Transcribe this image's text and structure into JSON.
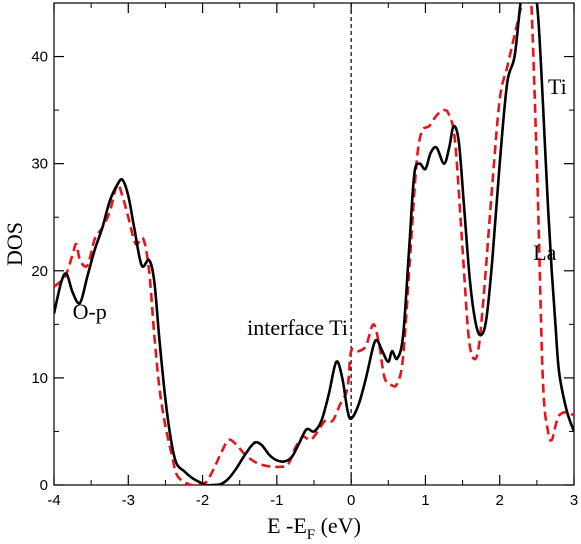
{
  "chart_data": {
    "type": "line",
    "xlabel": "E -E",
    "xlabel_sub": "F",
    "xlabel_unit": " (eV)",
    "ylabel": "DOS",
    "xlim": [
      -4,
      3
    ],
    "ylim": [
      0,
      45
    ],
    "xticks": [
      -4,
      -3,
      -2,
      -1,
      0,
      1,
      2,
      3
    ],
    "yticks": [
      0,
      10,
      20,
      30,
      40
    ],
    "fermi_level": 0,
    "grid": false,
    "annotations": [
      {
        "text": "O-p",
        "x": -3.75,
        "y": 15.5
      },
      {
        "text": "interface Ti",
        "x": -1.4,
        "y": 14.0
      },
      {
        "text": "Ti",
        "x": 2.65,
        "y": 36.5
      },
      {
        "text": "La",
        "x": 2.45,
        "y": 21.0
      }
    ],
    "series": [
      {
        "color": "#000000",
        "dash": "solid",
        "x": [
          -4.0,
          -3.9,
          -3.83,
          -3.75,
          -3.65,
          -3.55,
          -3.45,
          -3.35,
          -3.25,
          -3.15,
          -3.08,
          -3.0,
          -2.92,
          -2.82,
          -2.72,
          -2.65,
          -2.58,
          -2.5,
          -2.42,
          -2.35,
          -2.25,
          -2.15,
          -2.05,
          -1.95,
          -1.85,
          -1.75,
          -1.65,
          -1.55,
          -1.45,
          -1.35,
          -1.28,
          -1.2,
          -1.1,
          -1.0,
          -0.9,
          -0.8,
          -0.7,
          -0.6,
          -0.5,
          -0.4,
          -0.3,
          -0.2,
          -0.12,
          -0.05,
          0.0,
          0.1,
          0.2,
          0.3,
          0.35,
          0.42,
          0.5,
          0.55,
          0.62,
          0.7,
          0.78,
          0.85,
          0.92,
          1.0,
          1.07,
          1.15,
          1.25,
          1.32,
          1.38,
          1.45,
          1.52,
          1.6,
          1.68,
          1.75,
          1.82,
          1.9,
          2.0,
          2.1,
          2.2,
          2.28,
          2.35,
          2.42,
          2.5,
          2.55,
          2.6,
          2.65,
          2.7,
          2.75,
          2.8,
          2.9,
          3.0
        ],
        "y": [
          16.0,
          19.0,
          19.7,
          18.0,
          17.0,
          19.5,
          22.0,
          24.0,
          26.5,
          28.0,
          28.5,
          27.0,
          24.0,
          20.5,
          21.0,
          19.0,
          13.5,
          8.0,
          4.0,
          2.0,
          1.3,
          0.7,
          0.3,
          0.0,
          0.0,
          0.1,
          0.6,
          1.5,
          2.6,
          3.6,
          4.0,
          3.7,
          2.8,
          2.3,
          2.2,
          2.6,
          3.9,
          5.2,
          5.0,
          6.0,
          8.5,
          11.5,
          10.0,
          7.0,
          6.2,
          7.5,
          10.0,
          13.0,
          13.5,
          12.5,
          11.5,
          12.5,
          11.8,
          14.0,
          22.0,
          29.0,
          30.0,
          29.5,
          31.0,
          31.5,
          30.0,
          31.5,
          33.5,
          32.0,
          26.0,
          19.0,
          15.0,
          14.0,
          15.5,
          21.0,
          30.0,
          37.5,
          40.0,
          45.0,
          48.0,
          47.0,
          45.0,
          40.0,
          33.0,
          26.0,
          20.0,
          15.0,
          10.5,
          7.0,
          5.0
        ]
      },
      {
        "color": "#e8141b",
        "dash": "dashed",
        "x": [
          -4.0,
          -3.85,
          -3.75,
          -3.7,
          -3.65,
          -3.55,
          -3.45,
          -3.35,
          -3.25,
          -3.15,
          -3.08,
          -3.0,
          -2.9,
          -2.8,
          -2.72,
          -2.65,
          -2.58,
          -2.5,
          -2.42,
          -2.35,
          -2.25,
          -2.15,
          -2.05,
          -1.95,
          -1.85,
          -1.75,
          -1.65,
          -1.55,
          -1.45,
          -1.35,
          -1.25,
          -1.15,
          -1.05,
          -0.95,
          -0.85,
          -0.75,
          -0.65,
          -0.55,
          -0.45,
          -0.35,
          -0.25,
          -0.15,
          -0.05,
          0.0,
          0.1,
          0.2,
          0.3,
          0.38,
          0.45,
          0.55,
          0.62,
          0.7,
          0.8,
          0.88,
          0.95,
          1.05,
          1.15,
          1.25,
          1.32,
          1.4,
          1.5,
          1.58,
          1.65,
          1.72,
          1.8,
          1.9,
          2.0,
          2.1,
          2.2,
          2.3,
          2.4,
          2.5,
          2.58,
          2.65,
          2.7,
          2.75,
          2.8,
          2.9,
          3.0
        ],
        "y": [
          18.5,
          19.5,
          21.5,
          22.5,
          21.0,
          20.5,
          23.0,
          24.0,
          25.5,
          28.0,
          27.0,
          25.0,
          22.5,
          23.0,
          20.0,
          14.0,
          9.0,
          5.5,
          3.0,
          1.0,
          0.3,
          0.0,
          0.0,
          0.3,
          1.5,
          3.0,
          4.2,
          3.8,
          3.0,
          2.4,
          2.0,
          1.8,
          1.7,
          1.7,
          1.9,
          3.5,
          4.5,
          4.2,
          5.0,
          6.0,
          6.0,
          7.5,
          9.0,
          12.5,
          12.5,
          13.0,
          15.0,
          13.0,
          10.0,
          9.3,
          9.5,
          12.0,
          22.0,
          30.0,
          33.0,
          33.5,
          34.5,
          35.0,
          34.5,
          32.0,
          22.0,
          14.0,
          11.8,
          13.0,
          19.0,
          28.0,
          36.0,
          39.0,
          42.0,
          45.0,
          48.0,
          30.0,
          10.0,
          5.0,
          4.2,
          5.5,
          6.5,
          6.8,
          6.5
        ]
      }
    ]
  }
}
